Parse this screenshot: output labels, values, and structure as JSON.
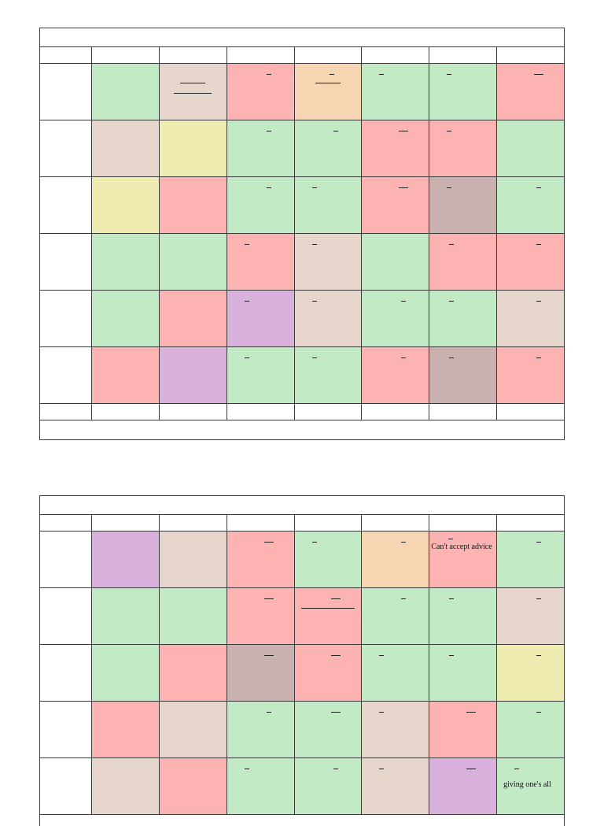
{
  "colors": {
    "green": "#c2eac4",
    "red": "#fdb3b1",
    "beige": "#e6d6cb",
    "yellow": "#eeecb1",
    "orange": "#f8d5b2",
    "purple": "#d8b2dc",
    "mauve": "#c9b1b0"
  },
  "table1": {
    "rows": [
      [
        "green",
        "beige",
        "red",
        "orange",
        "green",
        "green",
        "red"
      ],
      [
        "beige",
        "yellow",
        "green",
        "green",
        "red",
        "red",
        "green"
      ],
      [
        "yellow",
        "red",
        "green",
        "green",
        "red",
        "mauve",
        "green"
      ],
      [
        "green",
        "green",
        "red",
        "beige",
        "green",
        "red",
        "red"
      ],
      [
        "green",
        "red",
        "purple",
        "beige",
        "green",
        "green",
        "beige"
      ],
      [
        "red",
        "purple",
        "green",
        "green",
        "red",
        "mauve",
        "red"
      ]
    ]
  },
  "table2": {
    "rows": [
      [
        "purple",
        "beige",
        "red",
        "green",
        "orange",
        "red",
        "green"
      ],
      [
        "green",
        "green",
        "red",
        "red",
        "green",
        "green",
        "beige"
      ],
      [
        "green",
        "red",
        "mauve",
        "red",
        "green",
        "green",
        "yellow"
      ],
      [
        "red",
        "beige",
        "green",
        "green",
        "beige",
        "red",
        "green"
      ],
      [
        "beige",
        "red",
        "green",
        "green",
        "beige",
        "purple",
        "green"
      ]
    ],
    "cell_notes": {
      "cant_accept_advice": "Can't accept advice",
      "giving_ones_all": "giving one's all"
    }
  }
}
